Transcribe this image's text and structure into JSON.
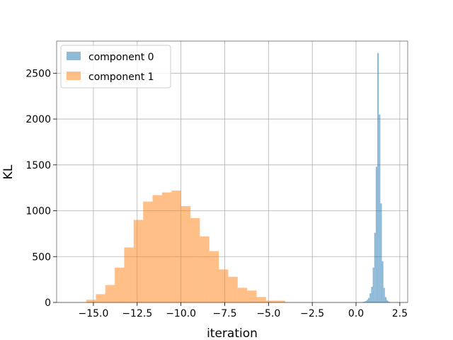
{
  "chart_data": {
    "type": "histogram",
    "title": "",
    "xlabel": "iteration",
    "ylabel": "KL",
    "xlim": [
      -17.1,
      2.95
    ],
    "ylim": [
      0,
      2850
    ],
    "xticks": [
      -15.0,
      -12.5,
      -10.0,
      -7.5,
      -5.0,
      -2.5,
      0.0,
      2.5
    ],
    "xtick_labels": [
      "−15.0",
      "−12.5",
      "−10.0",
      "−7.5",
      "−5.0",
      "−2.5",
      "0.0",
      "2.5"
    ],
    "yticks": [
      0,
      500,
      1000,
      1500,
      2000,
      2500
    ],
    "ytick_labels": [
      "0",
      "500",
      "1000",
      "1500",
      "2000",
      "2500"
    ],
    "grid": true,
    "legend_position": "top-left",
    "series": [
      {
        "name": "component 0",
        "color": "#1f77b4",
        "alpha": 0.5,
        "bin_edges": [
          0.25,
          0.3375,
          0.425,
          0.5125,
          0.6,
          0.6875,
          0.775,
          0.8625,
          0.95,
          1.0375,
          1.125,
          1.2125,
          1.3,
          1.3875,
          1.475,
          1.5625,
          1.65,
          1.7375,
          1.825,
          1.9125,
          2.0
        ],
        "counts": [
          2,
          4,
          8,
          15,
          30,
          50,
          100,
          170,
          380,
          760,
          1480,
          2720,
          2050,
          1080,
          450,
          160,
          60,
          25,
          10,
          3
        ]
      },
      {
        "name": "component 1",
        "color": "#ff7f0e",
        "alpha": 0.5,
        "bin_edges": [
          -15.4,
          -14.86,
          -14.32,
          -13.78,
          -13.24,
          -12.7,
          -12.16,
          -11.62,
          -11.08,
          -10.54,
          -10.0,
          -9.46,
          -8.92,
          -8.38,
          -7.84,
          -7.3,
          -6.76,
          -6.22,
          -5.68,
          -5.14,
          -4.6,
          -4.06
        ],
        "counts": [
          30,
          90,
          190,
          380,
          600,
          900,
          1100,
          1170,
          1200,
          1220,
          1050,
          920,
          720,
          560,
          360,
          280,
          160,
          130,
          60,
          20,
          20
        ]
      }
    ]
  }
}
